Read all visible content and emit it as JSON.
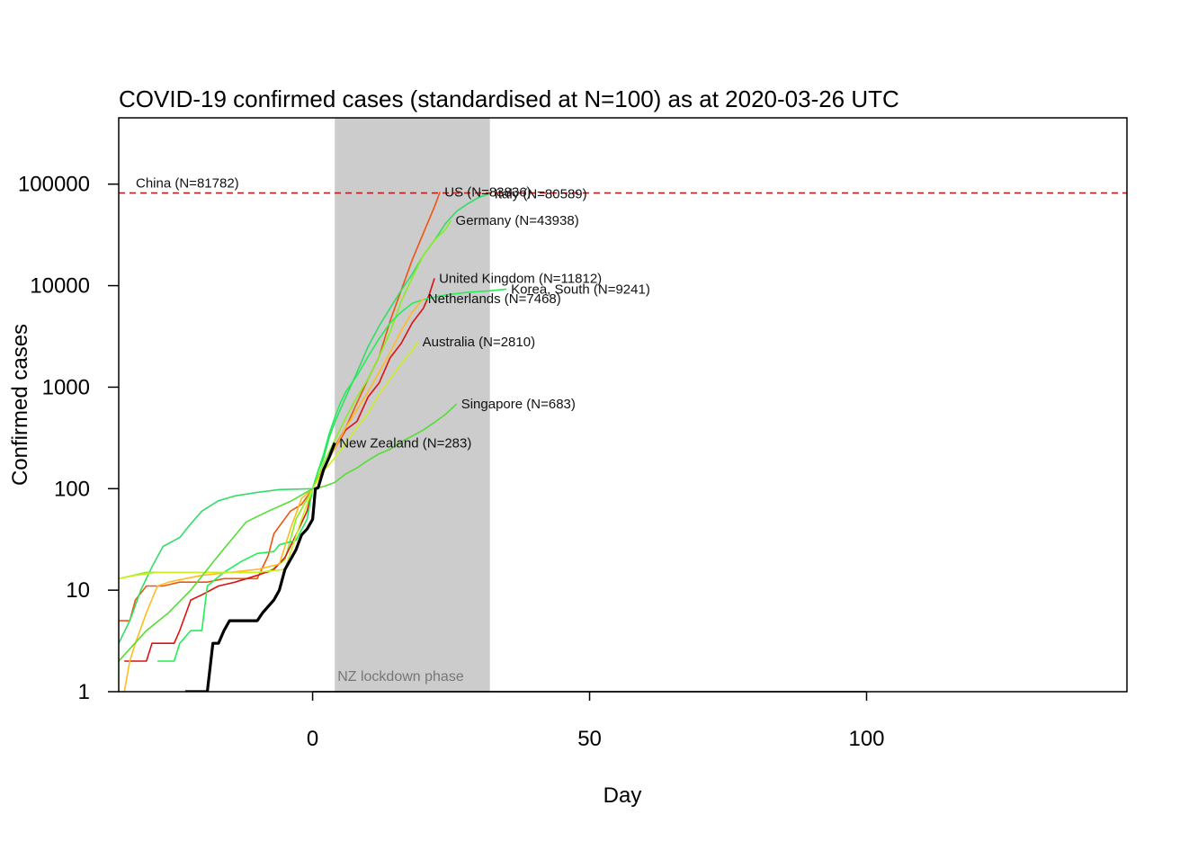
{
  "chart_data": {
    "type": "line",
    "title": "COVID-19 confirmed cases (standardised at N=100) as at 2020-03-26 UTC",
    "xlabel": "Day",
    "ylabel": "Confirmed cases",
    "xlim": [
      -35,
      147
    ],
    "ylim": [
      1,
      450000
    ],
    "yscale": "log",
    "x_ticks": [
      0,
      50,
      100
    ],
    "y_ticks": [
      1,
      10,
      100,
      1000,
      10000,
      100000
    ],
    "y_tick_labels": [
      "1",
      "10",
      "100",
      "1000",
      "10000",
      "100000"
    ],
    "grid": false,
    "shaded_region": {
      "x": [
        4,
        32
      ],
      "label": "NZ lockdown phase",
      "color": "#cccccc"
    },
    "reference_line": {
      "y": 81782,
      "label": "China (N=81782)",
      "color": "#b22222"
    },
    "series": [
      {
        "name": "US",
        "label": "US (N=83836)",
        "color": "#ee5511",
        "width": 1.6,
        "points": [
          [
            -35,
            5
          ],
          [
            -33,
            5
          ],
          [
            -32,
            8
          ],
          [
            -30,
            11
          ],
          [
            -27,
            11
          ],
          [
            -24,
            12
          ],
          [
            -19,
            12
          ],
          [
            -16,
            13
          ],
          [
            -10,
            13
          ],
          [
            -8,
            22
          ],
          [
            -7,
            36
          ],
          [
            -4,
            60
          ],
          [
            -2,
            70
          ],
          [
            0,
            100
          ],
          [
            2,
            160
          ],
          [
            4,
            260
          ],
          [
            6,
            400
          ],
          [
            8,
            700
          ],
          [
            10,
            1200
          ],
          [
            12,
            2000
          ],
          [
            14,
            4500
          ],
          [
            16,
            9000
          ],
          [
            18,
            18000
          ],
          [
            20,
            33000
          ],
          [
            22,
            60000
          ],
          [
            23,
            83836
          ]
        ]
      },
      {
        "name": "Italy",
        "label": "Italy (N=80589)",
        "color": "#33dd66",
        "width": 1.6,
        "points": [
          [
            -35,
            3
          ],
          [
            -33,
            5
          ],
          [
            -31,
            10
          ],
          [
            -29,
            17
          ],
          [
            -27,
            27
          ],
          [
            -24,
            33
          ],
          [
            -22,
            45
          ],
          [
            -20,
            60
          ],
          [
            -17,
            76
          ],
          [
            -14,
            85
          ],
          [
            -10,
            92
          ],
          [
            -6,
            98
          ],
          [
            0,
            100
          ],
          [
            1,
            150
          ],
          [
            2,
            200
          ],
          [
            3,
            320
          ],
          [
            4,
            450
          ],
          [
            6,
            800
          ],
          [
            8,
            1400
          ],
          [
            10,
            2500
          ],
          [
            12,
            4000
          ],
          [
            14,
            6000
          ],
          [
            16,
            9000
          ],
          [
            18,
            13000
          ],
          [
            20,
            20000
          ],
          [
            22,
            28000
          ],
          [
            24,
            41000
          ],
          [
            26,
            54000
          ],
          [
            28,
            64000
          ],
          [
            30,
            74000
          ],
          [
            32,
            80589
          ]
        ]
      },
      {
        "name": "Germany",
        "label": "Germany (N=43938)",
        "color": "#88ee22",
        "width": 1.6,
        "points": [
          [
            -35,
            13
          ],
          [
            -30,
            15
          ],
          [
            -20,
            15
          ],
          [
            -15,
            15
          ],
          [
            -8,
            15
          ],
          [
            -5,
            20
          ],
          [
            -3,
            50
          ],
          [
            0,
            100
          ],
          [
            2,
            180
          ],
          [
            4,
            300
          ],
          [
            6,
            500
          ],
          [
            8,
            800
          ],
          [
            10,
            1200
          ],
          [
            12,
            2000
          ],
          [
            14,
            3500
          ],
          [
            16,
            7000
          ],
          [
            18,
            12000
          ],
          [
            20,
            20000
          ],
          [
            22,
            28000
          ],
          [
            24,
            36000
          ],
          [
            25,
            43938
          ]
        ]
      },
      {
        "name": "United Kingdom",
        "label": "United Kingdom (N=11812)",
        "color": "#dd1111",
        "width": 1.6,
        "points": [
          [
            -34,
            2
          ],
          [
            -30,
            2
          ],
          [
            -29,
            3
          ],
          [
            -25,
            3
          ],
          [
            -24,
            4
          ],
          [
            -22,
            8
          ],
          [
            -20,
            9
          ],
          [
            -17,
            11
          ],
          [
            -14,
            12
          ],
          [
            -10,
            14
          ],
          [
            -7,
            16
          ],
          [
            -5,
            21
          ],
          [
            -3,
            35
          ],
          [
            -1,
            60
          ],
          [
            0,
            100
          ],
          [
            2,
            160
          ],
          [
            4,
            250
          ],
          [
            6,
            380
          ],
          [
            8,
            460
          ],
          [
            10,
            800
          ],
          [
            12,
            1100
          ],
          [
            14,
            1950
          ],
          [
            16,
            2700
          ],
          [
            18,
            4300
          ],
          [
            20,
            6000
          ],
          [
            21,
            8000
          ],
          [
            22,
            11812
          ]
        ]
      },
      {
        "name": "Korea, South",
        "label": "Korea, South (N=9241)",
        "color": "#22ee55",
        "width": 1.6,
        "points": [
          [
            -28,
            2
          ],
          [
            -25,
            2
          ],
          [
            -24,
            3
          ],
          [
            -22,
            4
          ],
          [
            -20,
            4
          ],
          [
            -19,
            11
          ],
          [
            -16,
            15
          ],
          [
            -13,
            19
          ],
          [
            -10,
            23
          ],
          [
            -7,
            24
          ],
          [
            -6,
            28
          ],
          [
            -3,
            31
          ],
          [
            -1,
            50
          ],
          [
            0,
            100
          ],
          [
            1,
            150
          ],
          [
            2,
            220
          ],
          [
            3,
            350
          ],
          [
            4,
            500
          ],
          [
            5,
            700
          ],
          [
            6,
            900
          ],
          [
            8,
            1300
          ],
          [
            10,
            2000
          ],
          [
            12,
            3000
          ],
          [
            14,
            4300
          ],
          [
            16,
            5500
          ],
          [
            18,
            6700
          ],
          [
            20,
            7300
          ],
          [
            24,
            8100
          ],
          [
            28,
            8600
          ],
          [
            32,
            8900
          ],
          [
            35,
            9241
          ]
        ]
      },
      {
        "name": "Netherlands",
        "label": "Netherlands (N=7468)",
        "color": "#ffbb22",
        "width": 1.6,
        "points": [
          [
            -34,
            1
          ],
          [
            -33,
            2
          ],
          [
            -32,
            3
          ],
          [
            -30,
            6
          ],
          [
            -28,
            11
          ],
          [
            -26,
            12
          ],
          [
            -23,
            13
          ],
          [
            -20,
            14
          ],
          [
            -15,
            15
          ],
          [
            -10,
            16
          ],
          [
            -6,
            18
          ],
          [
            -4,
            40
          ],
          [
            -2,
            80
          ],
          [
            0,
            100
          ],
          [
            2,
            160
          ],
          [
            4,
            250
          ],
          [
            6,
            400
          ],
          [
            8,
            600
          ],
          [
            10,
            900
          ],
          [
            12,
            1400
          ],
          [
            14,
            2200
          ],
          [
            16,
            3600
          ],
          [
            18,
            5500
          ],
          [
            20,
            7468
          ]
        ]
      },
      {
        "name": "Australia",
        "label": "Australia (N=2810)",
        "color": "#ccee22",
        "width": 1.6,
        "points": [
          [
            -35,
            13
          ],
          [
            -32,
            14
          ],
          [
            -28,
            15
          ],
          [
            -20,
            15
          ],
          [
            -10,
            15
          ],
          [
            -5,
            16
          ],
          [
            -2,
            50
          ],
          [
            0,
            100
          ],
          [
            2,
            150
          ],
          [
            4,
            200
          ],
          [
            6,
            280
          ],
          [
            8,
            400
          ],
          [
            10,
            550
          ],
          [
            12,
            850
          ],
          [
            14,
            1200
          ],
          [
            16,
            1700
          ],
          [
            18,
            2300
          ],
          [
            19,
            2810
          ]
        ]
      },
      {
        "name": "Singapore",
        "label": "Singapore (N=683)",
        "color": "#55dd33",
        "width": 1.6,
        "points": [
          [
            -35,
            2
          ],
          [
            -30,
            4
          ],
          [
            -26,
            6
          ],
          [
            -22,
            10
          ],
          [
            -17,
            22
          ],
          [
            -12,
            47
          ],
          [
            -8,
            60
          ],
          [
            -4,
            75
          ],
          [
            0,
            100
          ],
          [
            2,
            105
          ],
          [
            4,
            115
          ],
          [
            6,
            140
          ],
          [
            8,
            160
          ],
          [
            10,
            190
          ],
          [
            12,
            220
          ],
          [
            14,
            245
          ],
          [
            16,
            290
          ],
          [
            18,
            330
          ],
          [
            20,
            380
          ],
          [
            22,
            450
          ],
          [
            24,
            540
          ],
          [
            26,
            683
          ]
        ]
      },
      {
        "name": "New Zealand",
        "label": "New Zealand (N=283)",
        "color": "#000000",
        "width": 3.2,
        "points": [
          [
            -23,
            1
          ],
          [
            -19,
            1
          ],
          [
            -18,
            3
          ],
          [
            -17,
            3
          ],
          [
            -16,
            4
          ],
          [
            -15,
            5
          ],
          [
            -10,
            5
          ],
          [
            -9,
            6
          ],
          [
            -7,
            8
          ],
          [
            -6,
            10
          ],
          [
            -5,
            16
          ],
          [
            -3,
            25
          ],
          [
            -2,
            35
          ],
          [
            -1,
            40
          ],
          [
            0,
            50
          ],
          [
            0.5,
            100
          ],
          [
            1,
            102
          ],
          [
            2,
            155
          ],
          [
            3,
            205
          ],
          [
            4,
            283
          ]
        ]
      }
    ]
  }
}
